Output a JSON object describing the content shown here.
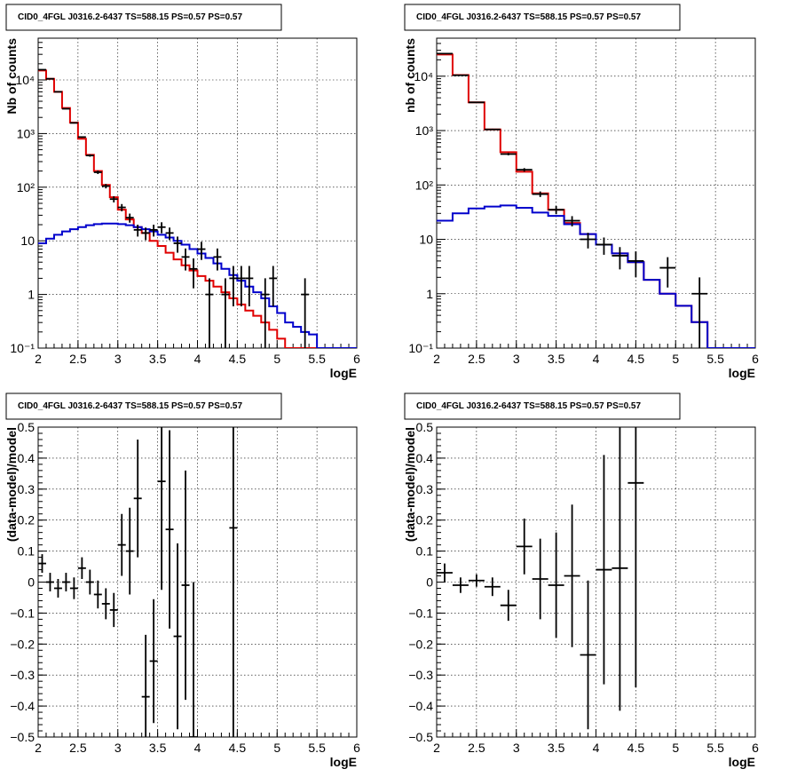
{
  "colors": {
    "data": "#000000",
    "total_model": "#e00000",
    "component_model": "#0000cc"
  },
  "chart_data": [
    {
      "type": "line",
      "title": "CID0_4FGL J0316.2-6437 TS=588.15 PS=0.57 PS=0.57",
      "xlabel": "logE",
      "ylabel": "Nb of counts",
      "xlim": [
        2,
        6
      ],
      "ylim": [
        0.1,
        60000
      ],
      "log_y": true,
      "grid": true,
      "xticks": [
        "2",
        "2.5",
        "3",
        "3.5",
        "4",
        "4.5",
        "5",
        "5.5",
        "6"
      ],
      "yticks": [
        {
          "value": 0.1,
          "label": "10⁻¹"
        },
        {
          "value": 1,
          "label": "1"
        },
        {
          "value": 10,
          "label": "10"
        },
        {
          "value": 100,
          "label": "10²"
        },
        {
          "value": 1000,
          "label": "10³"
        },
        {
          "value": 10000,
          "label": "10⁴"
        }
      ],
      "bin_edges": [
        2.0,
        2.1,
        2.2,
        2.3,
        2.4,
        2.5,
        2.6,
        2.7,
        2.8,
        2.9,
        3.0,
        3.1,
        3.2,
        3.3,
        3.4,
        3.5,
        3.6,
        3.7,
        3.8,
        3.9,
        4.0,
        4.1,
        4.2,
        4.3,
        4.4,
        4.5,
        4.6,
        4.7,
        4.8,
        4.9,
        5.0,
        5.1,
        5.2,
        5.3,
        5.4,
        5.5,
        5.6,
        5.7,
        5.8,
        5.9,
        6.0
      ],
      "series": [
        {
          "role": "total_model",
          "values": [
            15000,
            10500,
            6000,
            3000,
            1600,
            800,
            400,
            200,
            110,
            65,
            38,
            25,
            18,
            14,
            10,
            8,
            6,
            4.5,
            3.5,
            2.8,
            2.2,
            1.8,
            1.4,
            1.1,
            0.85,
            0.65,
            0.5,
            0.4,
            0.3,
            0.22,
            0.15,
            0.1,
            0.08,
            0.08,
            0.08,
            0.08,
            0.08,
            0.08,
            0.08,
            0.08
          ]
        },
        {
          "role": "component_model",
          "values": [
            9,
            11,
            13,
            15,
            16.5,
            18,
            19.5,
            20.5,
            21,
            21,
            20.5,
            19.5,
            18,
            16.5,
            15,
            13,
            11.5,
            10,
            8.5,
            7,
            5.8,
            4.8,
            3.8,
            3,
            2.3,
            1.8,
            1.4,
            1.1,
            0.85,
            0.6,
            0.45,
            0.3,
            0.25,
            0.2,
            0.18,
            0.08,
            0.08,
            0.08,
            0.08,
            0.08
          ]
        },
        {
          "role": "data",
          "x": [
            2.05,
            2.15,
            2.25,
            2.35,
            2.45,
            2.55,
            2.65,
            2.75,
            2.85,
            2.95,
            3.05,
            3.15,
            3.25,
            3.35,
            3.45,
            3.55,
            3.65,
            3.75,
            3.85,
            3.95,
            4.05,
            4.15,
            4.25,
            4.35,
            4.45,
            4.55,
            4.65,
            4.85,
            4.95,
            5.35
          ],
          "y": [
            15500,
            10500,
            6000,
            2900,
            1580,
            860,
            390,
            190,
            105,
            60,
            42,
            27,
            16,
            14,
            16,
            18,
            14,
            9,
            5,
            3,
            7,
            1,
            5,
            1,
            2,
            2,
            2,
            1,
            2,
            1
          ],
          "yerr": [
            124,
            102,
            77,
            54,
            40,
            29,
            20,
            14,
            10,
            8,
            6.5,
            5.2,
            4,
            3.7,
            4,
            4.2,
            3.7,
            3,
            2.2,
            1.7,
            2.6,
            1,
            2.2,
            1,
            1.4,
            1.4,
            1.4,
            1,
            1.4,
            1
          ]
        }
      ]
    },
    {
      "type": "line",
      "title": "CID0_4FGL J0316.2-6437 TS=588.15 PS=0.57 PS=0.57",
      "xlabel": "logE",
      "ylabel": "nb of counts",
      "xlim": [
        2,
        6
      ],
      "ylim": [
        0.1,
        50000
      ],
      "log_y": true,
      "grid": true,
      "xticks": [
        "2",
        "2.5",
        "3",
        "3.5",
        "4",
        "4.5",
        "5",
        "5.5",
        "6"
      ],
      "yticks": [
        {
          "value": 0.1,
          "label": "10⁻¹"
        },
        {
          "value": 1,
          "label": "1"
        },
        {
          "value": 10,
          "label": "10"
        },
        {
          "value": 100,
          "label": "10²"
        },
        {
          "value": 1000,
          "label": "10³"
        },
        {
          "value": 10000,
          "label": "10⁴"
        }
      ],
      "bin_edges": [
        2.0,
        2.2,
        2.4,
        2.6,
        2.8,
        3.0,
        3.2,
        3.4,
        3.6,
        3.8,
        4.0,
        4.2,
        4.4,
        4.6,
        4.8,
        5.0,
        5.2,
        5.4,
        5.6,
        5.8,
        6.0
      ],
      "series": [
        {
          "role": "total_model",
          "values": [
            25000,
            10500,
            3300,
            1050,
            400,
            175,
            70,
            35,
            20,
            12.5,
            8,
            5.5,
            3.8,
            1.8,
            1,
            0.6,
            0.3,
            0.1,
            0.09,
            0.09
          ]
        },
        {
          "role": "component_model",
          "values": [
            22,
            30,
            37,
            40,
            42,
            38,
            31,
            27,
            19,
            12.5,
            8,
            5.5,
            3.8,
            1.8,
            1,
            0.6,
            0.3,
            0.1,
            0.09,
            0.09
          ]
        },
        {
          "role": "data",
          "x": [
            2.1,
            2.3,
            2.5,
            2.7,
            2.9,
            3.1,
            3.3,
            3.5,
            3.7,
            3.9,
            4.1,
            4.3,
            4.5,
            4.9,
            5.3
          ],
          "y": [
            26000,
            10400,
            3300,
            1050,
            370,
            190,
            68,
            35,
            22,
            10,
            8,
            5,
            4,
            3,
            1
          ],
          "yerr": [
            160,
            102,
            57,
            32,
            19,
            14,
            8,
            6,
            4.7,
            3.2,
            2.8,
            2.2,
            2,
            1.7,
            1
          ]
        }
      ]
    },
    {
      "type": "scatter",
      "title": "CID0_4FGL J0316.2-6437 TS=588.15 PS=0.57 PS=0.57",
      "xlabel": "logE",
      "ylabel": "(data-model)/model",
      "xlim": [
        2,
        6
      ],
      "ylim": [
        -0.5,
        0.5
      ],
      "log_y": false,
      "grid": true,
      "xticks": [
        "2",
        "2.5",
        "3",
        "3.5",
        "4",
        "4.5",
        "5",
        "5.5",
        "6"
      ],
      "yticks": [
        {
          "value": -0.5,
          "label": "−0.5"
        },
        {
          "value": -0.4,
          "label": "−0.4"
        },
        {
          "value": -0.3,
          "label": "−0.3"
        },
        {
          "value": -0.2,
          "label": "−0.2"
        },
        {
          "value": -0.1,
          "label": "−0.1"
        },
        {
          "value": 0,
          "label": "0"
        },
        {
          "value": 0.1,
          "label": "0.1"
        },
        {
          "value": 0.2,
          "label": "0.2"
        },
        {
          "value": 0.3,
          "label": "0.3"
        },
        {
          "value": 0.4,
          "label": "0.4"
        },
        {
          "value": 0.5,
          "label": "0.5"
        }
      ],
      "series": [
        {
          "role": "data",
          "xhalf": 0.05,
          "x": [
            2.05,
            2.15,
            2.25,
            2.35,
            2.45,
            2.55,
            2.65,
            2.75,
            2.85,
            2.95,
            3.05,
            3.15,
            3.25,
            3.35,
            3.45,
            3.55,
            3.65,
            3.75,
            3.85,
            3.95,
            4.45
          ],
          "y": [
            0.06,
            0.0,
            -0.02,
            0.0,
            -0.02,
            0.045,
            0.0,
            -0.04,
            -0.07,
            -0.09,
            0.12,
            0.1,
            0.27,
            -0.37,
            -0.255,
            0.325,
            0.17,
            -0.175,
            -0.01,
            -0.5,
            0.175
          ],
          "yerr": [
            0.03,
            0.03,
            0.03,
            0.03,
            0.035,
            0.035,
            0.04,
            0.045,
            0.05,
            0.055,
            0.1,
            0.14,
            0.19,
            0.2,
            0.2,
            0.35,
            0.32,
            0.3,
            0.37,
            0.5,
            0.7
          ]
        }
      ]
    },
    {
      "type": "scatter",
      "title": "CID0_4FGL J0316.2-6437 TS=588.15 PS=0.57 PS=0.57",
      "xlabel": "logE",
      "ylabel": "(data-model)/model",
      "xlim": [
        2,
        6
      ],
      "ylim": [
        -0.5,
        0.5
      ],
      "log_y": false,
      "grid": true,
      "xticks": [
        "2",
        "2.5",
        "3",
        "3.5",
        "4",
        "4.5",
        "5",
        "5.5",
        "6"
      ],
      "yticks": [
        {
          "value": -0.5,
          "label": "−0.5"
        },
        {
          "value": -0.4,
          "label": "−0.4"
        },
        {
          "value": -0.3,
          "label": "−0.3"
        },
        {
          "value": -0.2,
          "label": "−0.2"
        },
        {
          "value": -0.1,
          "label": "−0.1"
        },
        {
          "value": 0,
          "label": "0"
        },
        {
          "value": 0.1,
          "label": "0.1"
        },
        {
          "value": 0.2,
          "label": "0.2"
        },
        {
          "value": 0.3,
          "label": "0.3"
        },
        {
          "value": 0.4,
          "label": "0.4"
        },
        {
          "value": 0.5,
          "label": "0.5"
        }
      ],
      "series": [
        {
          "role": "data",
          "xhalf": 0.1,
          "x": [
            2.1,
            2.3,
            2.5,
            2.7,
            2.9,
            3.1,
            3.3,
            3.5,
            3.7,
            3.9,
            4.1,
            4.3,
            4.5
          ],
          "y": [
            0.03,
            -0.01,
            0.005,
            -0.015,
            -0.075,
            0.115,
            0.01,
            -0.01,
            0.02,
            -0.235,
            0.04,
            0.045,
            0.32
          ],
          "yerr": [
            0.03,
            0.025,
            0.02,
            0.03,
            0.05,
            0.09,
            0.13,
            0.17,
            0.23,
            0.24,
            0.37,
            0.46,
            0.66
          ]
        }
      ]
    }
  ]
}
